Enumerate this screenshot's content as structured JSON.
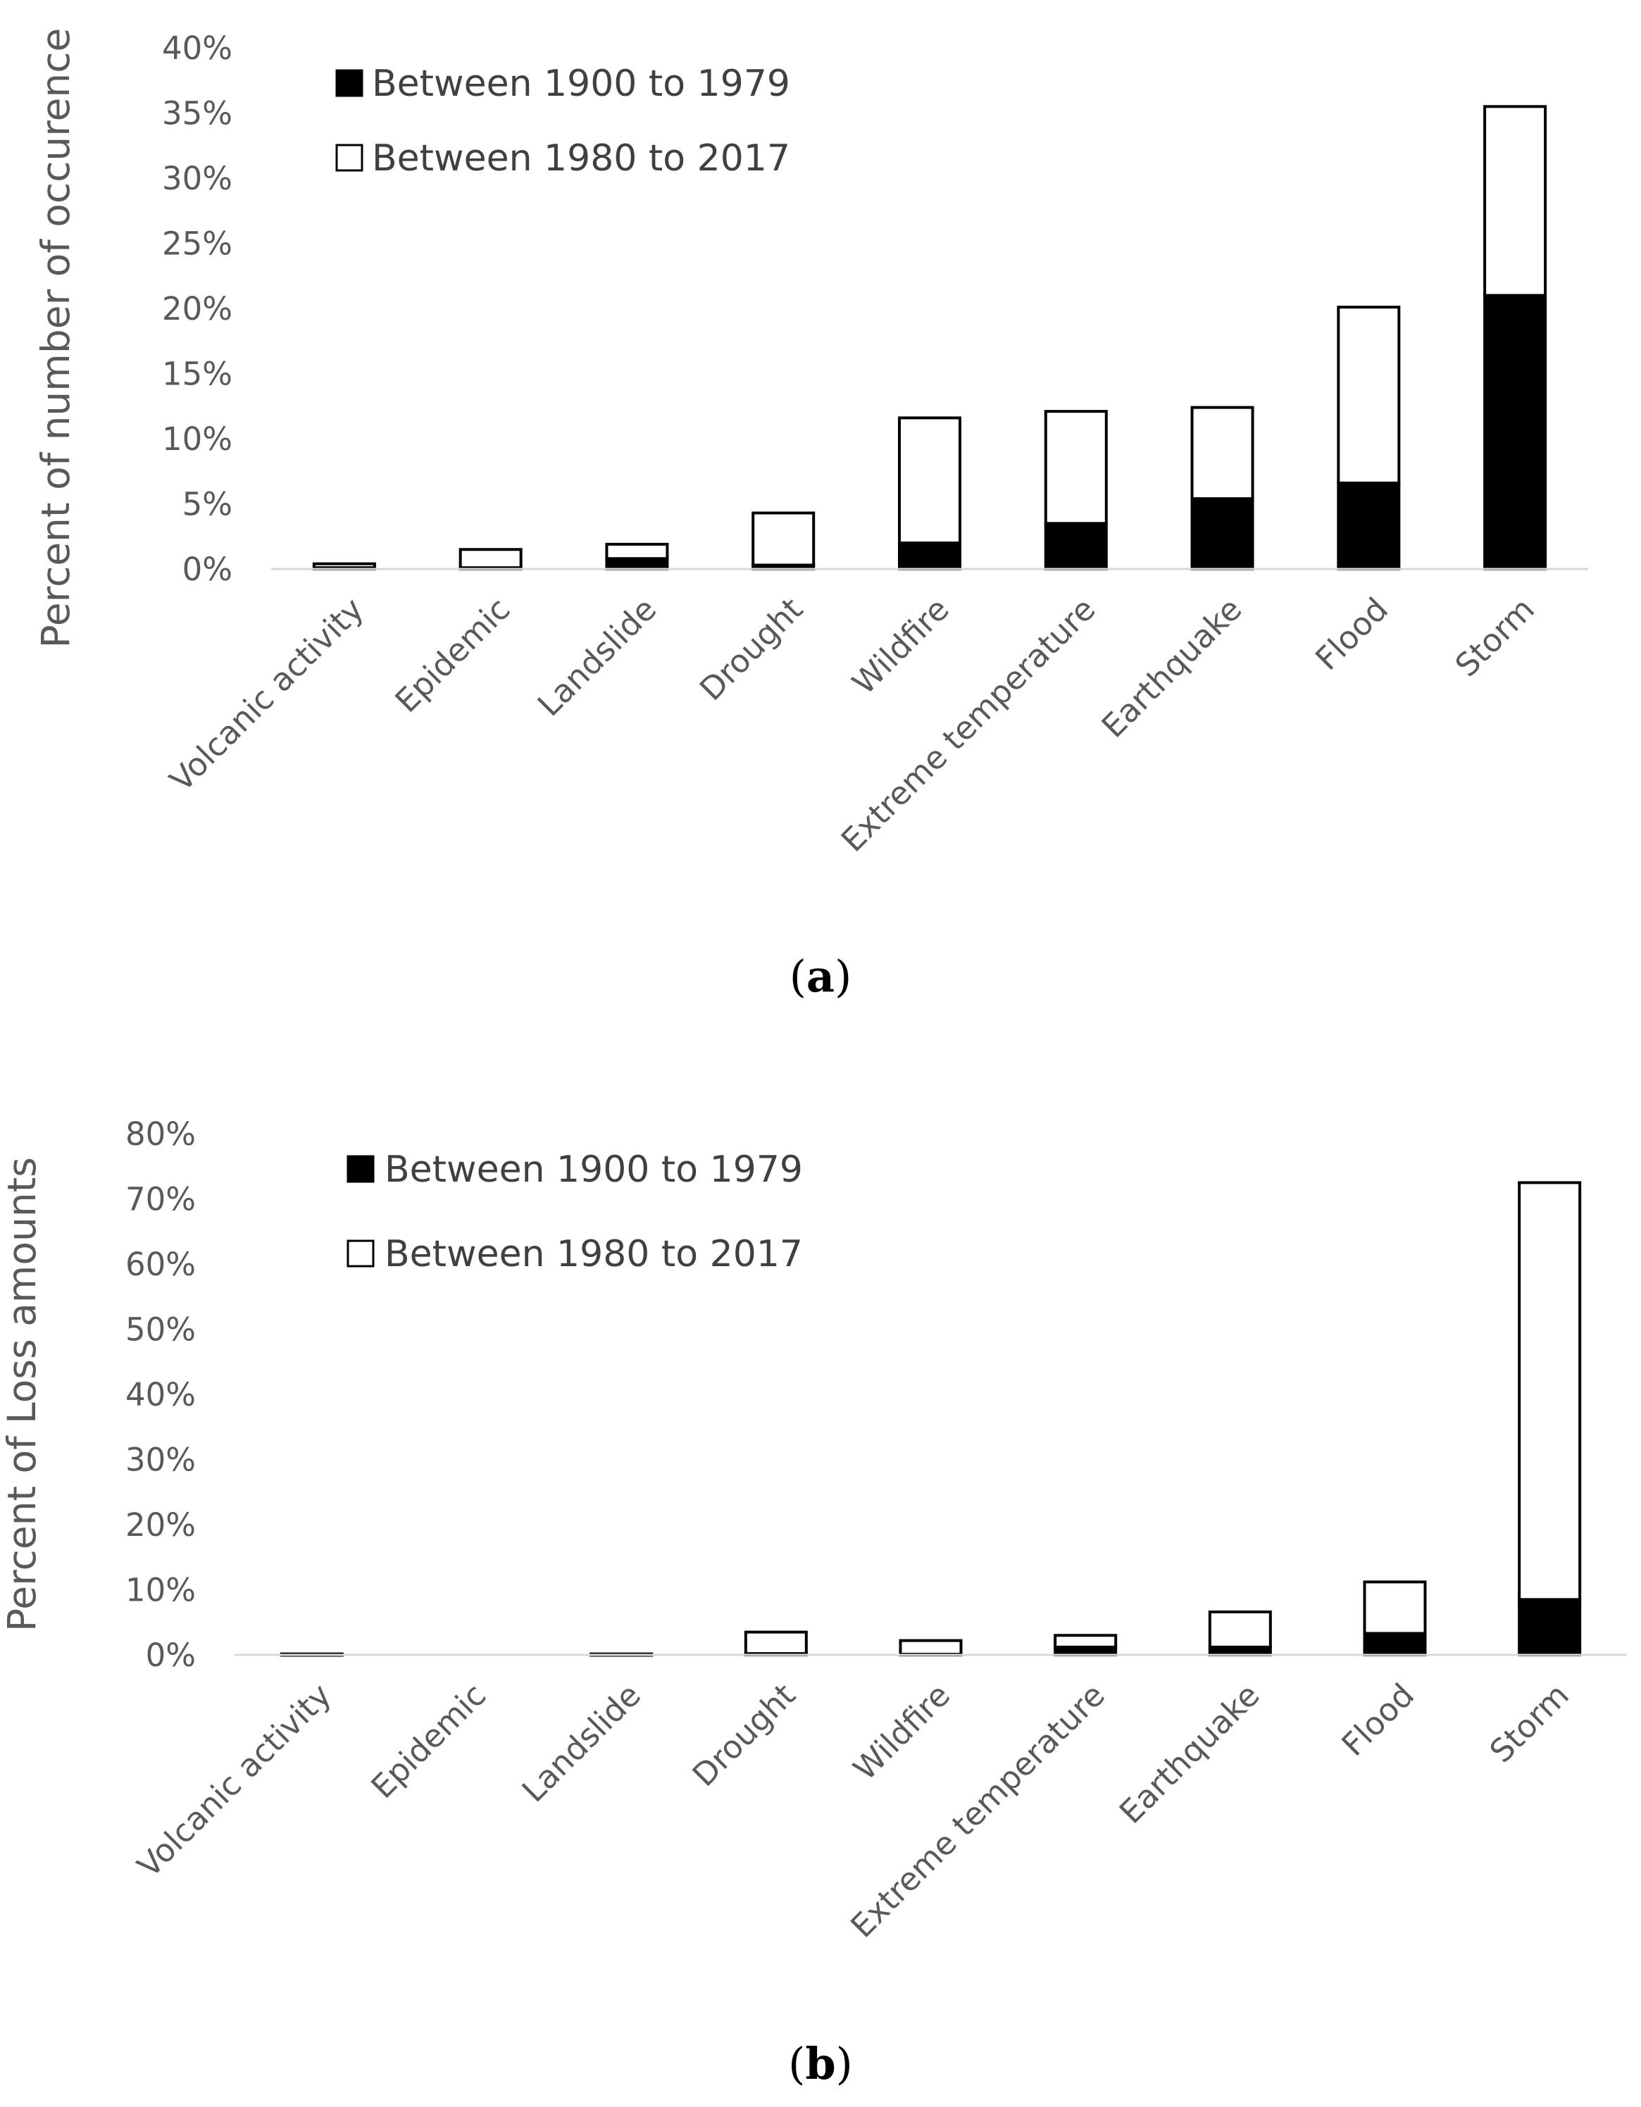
{
  "chart_data": [
    {
      "type": "bar",
      "stacked": true,
      "panel_label": "a",
      "ylabel": "Percent of number of occurence",
      "xlabel": "",
      "ylim": [
        0,
        40
      ],
      "yticks": [
        "0%",
        "5%",
        "10%",
        "15%",
        "20%",
        "25%",
        "30%",
        "35%",
        "40%"
      ],
      "categories": [
        "Volcanic activity",
        "Epidemic",
        "Landslide",
        "Drought",
        "Wildfire",
        "Extreme temperature",
        "Earthquake",
        "Flood",
        "Storm"
      ],
      "series": [
        {
          "name": "Between 1900 to 1979",
          "color": "#000000",
          "values": [
            0.1,
            0.1,
            0.8,
            0.3,
            2.0,
            3.5,
            5.4,
            6.6,
            21.0
          ]
        },
        {
          "name": "Between 1980 to 2017",
          "color": "#ffffff",
          "values": [
            0.3,
            1.4,
            1.1,
            4.0,
            9.6,
            8.6,
            7.0,
            13.5,
            14.5
          ]
        }
      ],
      "legend_position": "top-left"
    },
    {
      "type": "bar",
      "stacked": true,
      "panel_label": "b",
      "ylabel": "Percent of Loss amounts",
      "xlabel": "",
      "ylim": [
        0,
        80
      ],
      "yticks": [
        "0%",
        "10%",
        "20%",
        "30%",
        "40%",
        "50%",
        "60%",
        "70%",
        "80%"
      ],
      "categories": [
        "Volcanic activity",
        "Epidemic",
        "Landslide",
        "Drought",
        "Wildfire",
        "Extreme temperature",
        "Earthquake",
        "Flood",
        "Storm"
      ],
      "series": [
        {
          "name": "Between 1900 to 1979",
          "color": "#000000",
          "values": [
            0.05,
            0,
            0.05,
            0.2,
            0.1,
            1.2,
            1.2,
            3.3,
            8.5
          ]
        },
        {
          "name": "Between 1980 to 2017",
          "color": "#ffffff",
          "values": [
            0.1,
            0,
            0.1,
            3.3,
            2.1,
            1.8,
            5.4,
            7.9,
            64.0
          ]
        }
      ],
      "legend_position": "top-left"
    }
  ]
}
